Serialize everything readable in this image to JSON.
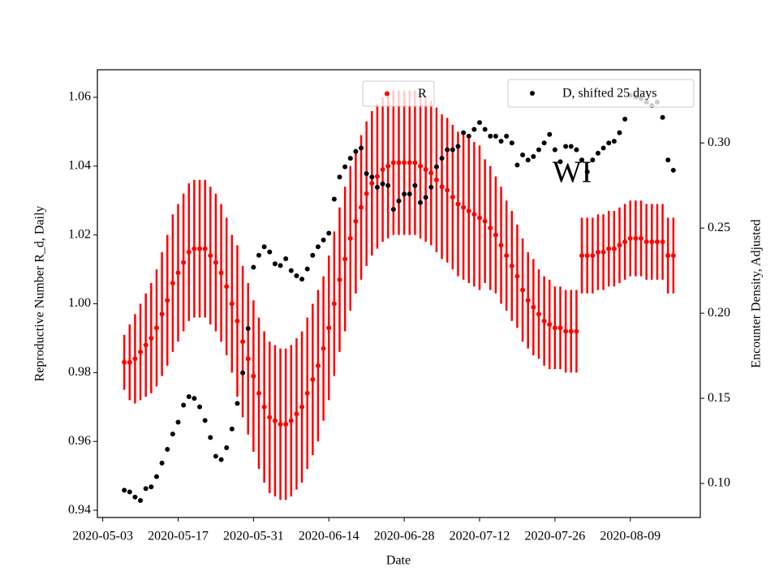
{
  "chart_data": {
    "type": "scatter",
    "annotation": "WI",
    "xlabel": "Date",
    "ylabel": "Reproductive Number R_d, Daily",
    "y2label": "Encounter Density, Adjusted",
    "ylabel_color": "#ff0000",
    "xlim": [
      "2020-05-02",
      "2020-08-22"
    ],
    "xticks": [
      "2020-05-03",
      "2020-05-17",
      "2020-05-31",
      "2020-06-14",
      "2020-06-28",
      "2020-07-12",
      "2020-07-26",
      "2020-08-09"
    ],
    "ylim": [
      0.9379,
      1.068
    ],
    "yticks": [
      0.94,
      0.96,
      0.98,
      {
        "value": 1,
        "label": "1.00"
      },
      1.02,
      1.04,
      1.06
    ],
    "y2lim": [
      0.08,
      0.343
    ],
    "y2ticks": [
      {
        "value": 0.1,
        "label": "0.10"
      },
      0.15,
      {
        "value": 0.2,
        "label": "0.20"
      },
      0.25,
      {
        "value": 0.3,
        "label": "0.30"
      }
    ],
    "x": [
      "2020-05-07",
      "2020-05-08",
      "2020-05-09",
      "2020-05-10",
      "2020-05-11",
      "2020-05-12",
      "2020-05-13",
      "2020-05-14",
      "2020-05-15",
      "2020-05-16",
      "2020-05-17",
      "2020-05-18",
      "2020-05-19",
      "2020-05-20",
      "2020-05-21",
      "2020-05-22",
      "2020-05-23",
      "2020-05-24",
      "2020-05-25",
      "2020-05-26",
      "2020-05-27",
      "2020-05-28",
      "2020-05-29",
      "2020-05-30",
      "2020-05-31",
      "2020-06-01",
      "2020-06-02",
      "2020-06-03",
      "2020-06-04",
      "2020-06-05",
      "2020-06-06",
      "2020-06-07",
      "2020-06-08",
      "2020-06-09",
      "2020-06-10",
      "2020-06-11",
      "2020-06-12",
      "2020-06-13",
      "2020-06-14",
      "2020-06-15",
      "2020-06-16",
      "2020-06-17",
      "2020-06-18",
      "2020-06-19",
      "2020-06-20",
      "2020-06-21",
      "2020-06-22",
      "2020-06-23",
      "2020-06-24",
      "2020-06-25",
      "2020-06-26",
      "2020-06-27",
      "2020-06-28",
      "2020-06-29",
      "2020-06-30",
      "2020-07-01",
      "2020-07-02",
      "2020-07-03",
      "2020-07-04",
      "2020-07-05",
      "2020-07-06",
      "2020-07-07",
      "2020-07-08",
      "2020-07-09",
      "2020-07-10",
      "2020-07-11",
      "2020-07-12",
      "2020-07-13",
      "2020-07-14",
      "2020-07-15",
      "2020-07-16",
      "2020-07-17",
      "2020-07-18",
      "2020-07-19",
      "2020-07-20",
      "2020-07-21",
      "2020-07-22",
      "2020-07-23",
      "2020-07-24",
      "2020-07-25",
      "2020-07-26",
      "2020-07-27",
      "2020-07-28",
      "2020-07-29",
      "2020-07-30",
      "2020-07-31",
      "2020-08-01",
      "2020-08-02",
      "2020-08-03",
      "2020-08-04",
      "2020-08-05",
      "2020-08-06",
      "2020-08-07",
      "2020-08-08",
      "2020-08-09",
      "2020-08-10",
      "2020-08-11",
      "2020-08-12",
      "2020-08-13",
      "2020-08-14",
      "2020-08-15",
      "2020-08-16",
      "2020-08-17"
    ],
    "series": [
      {
        "name": "R",
        "color": "#ff0000",
        "axis": "y",
        "legend": "upper center",
        "values": [
          0.983,
          0.983,
          0.984,
          0.986,
          0.988,
          0.99,
          0.993,
          0.997,
          1.001,
          1.006,
          1.009,
          1.012,
          1.015,
          1.016,
          1.016,
          1.016,
          1.014,
          1.012,
          1.009,
          1.005,
          1.0,
          0.995,
          0.989,
          0.984,
          0.979,
          0.974,
          0.97,
          0.967,
          0.966,
          0.965,
          0.965,
          0.966,
          0.968,
          0.97,
          0.974,
          0.978,
          0.982,
          0.987,
          0.993,
          1.0,
          1.007,
          1.013,
          1.019,
          1.024,
          1.028,
          1.032,
          1.035,
          1.037,
          1.039,
          1.04,
          1.041,
          1.041,
          1.041,
          1.041,
          1.041,
          1.04,
          1.039,
          1.038,
          1.036,
          1.034,
          1.033,
          1.031,
          1.029,
          1.028,
          1.027,
          1.026,
          1.025,
          1.024,
          1.022,
          1.02,
          1.017,
          1.014,
          1.011,
          1.008,
          1.004,
          1.001,
          0.999,
          0.997,
          0.995,
          0.994,
          0.993,
          0.993,
          0.992,
          0.992,
          0.992,
          1.014,
          1.014,
          1.014,
          1.015,
          1.015,
          1.016,
          1.016,
          1.017,
          1.018,
          1.019,
          1.019,
          1.019,
          1.018,
          1.018,
          1.018,
          1.018,
          1.014,
          1.014
        ],
        "errors": [
          0.008,
          0.011,
          0.013,
          0.014,
          0.015,
          0.016,
          0.017,
          0.018,
          0.019,
          0.02,
          0.02,
          0.02,
          0.02,
          0.02,
          0.02,
          0.02,
          0.02,
          0.02,
          0.02,
          0.02,
          0.02,
          0.022,
          0.022,
          0.022,
          0.022,
          0.022,
          0.022,
          0.022,
          0.022,
          0.022,
          0.022,
          0.022,
          0.022,
          0.022,
          0.022,
          0.022,
          0.022,
          0.021,
          0.021,
          0.021,
          0.021,
          0.021,
          0.021,
          0.021,
          0.021,
          0.021,
          0.021,
          0.021,
          0.021,
          0.021,
          0.021,
          0.021,
          0.021,
          0.021,
          0.021,
          0.021,
          0.021,
          0.021,
          0.021,
          0.021,
          0.021,
          0.021,
          0.021,
          0.021,
          0.021,
          0.021,
          0.021,
          0.018,
          0.018,
          0.017,
          0.017,
          0.016,
          0.016,
          0.015,
          0.015,
          0.014,
          0.014,
          0.013,
          0.013,
          0.013,
          0.012,
          0.012,
          0.012,
          0.012,
          0.012,
          0.011,
          0.011,
          0.011,
          0.011,
          0.011,
          0.011,
          0.011,
          0.011,
          0.011,
          0.011,
          0.011,
          0.011,
          0.011,
          0.011,
          0.011,
          0.011,
          0.011,
          0.011
        ]
      },
      {
        "name": "D, shifted 25 days",
        "color": "#000000",
        "axis": "y2",
        "legend": "upper right",
        "values": [
          0.096,
          0.095,
          0.092,
          0.09,
          0.097,
          0.098,
          0.104,
          0.112,
          0.12,
          0.129,
          0.136,
          0.146,
          0.151,
          0.15,
          0.145,
          0.137,
          0.127,
          0.116,
          0.114,
          0.121,
          0.132,
          0.147,
          0.165,
          0.191,
          0.227,
          0.234,
          0.239,
          0.236,
          0.229,
          0.228,
          0.232,
          0.225,
          0.222,
          0.22,
          0.226,
          0.234,
          0.239,
          0.243,
          0.247,
          0.267,
          0.28,
          0.286,
          0.291,
          0.295,
          0.297,
          0.282,
          0.28,
          0.274,
          0.276,
          0.275,
          0.261,
          0.266,
          0.27,
          0.27,
          0.275,
          0.265,
          0.268,
          0.274,
          0.286,
          0.291,
          0.296,
          0.296,
          0.298,
          0.306,
          0.304,
          0.308,
          0.312,
          0.308,
          0.304,
          0.304,
          0.301,
          0.304,
          0.3,
          0.287,
          0.293,
          0.29,
          0.292,
          0.296,
          0.3,
          0.305,
          0.296,
          0.289,
          0.298,
          0.298,
          0.296,
          0.29,
          0.283,
          0.29,
          0.294,
          0.297,
          0.3,
          0.301,
          0.306,
          0.314,
          0.328,
          0.327,
          0.326,
          0.324,
          0.322,
          0.324,
          0.315,
          0.29,
          0.284
        ]
      }
    ]
  }
}
